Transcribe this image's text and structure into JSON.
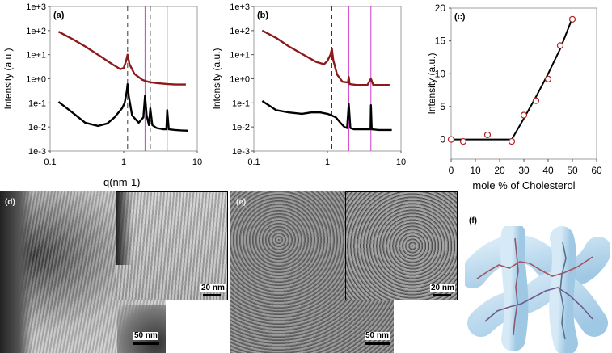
{
  "figure": {
    "panels": {
      "a": {
        "label": "(a)"
      },
      "b": {
        "label": "(b)"
      },
      "c": {
        "label": "(c)"
      },
      "d": {
        "label": "(d)",
        "scale_main": "50 nm",
        "scale_inset": "20 nm"
      },
      "e": {
        "label": "(e)",
        "scale_main": "50 nm",
        "scale_inset": "20 nm"
      },
      "f": {
        "label": "(f)"
      }
    },
    "shared": {
      "saxs_ylabel": "Intensity (a.u.)",
      "saxs_xlabel": "q(nm-1)",
      "saxs_yticks": [
        "1e+3",
        "1e+2",
        "1e+1",
        "1e+0",
        "1e-1",
        "1e-2",
        "1e-3"
      ],
      "saxs_xticks": [
        "0.1",
        "1",
        "10"
      ]
    }
  },
  "chart_data": [
    {
      "panel": "a",
      "type": "line",
      "xscale": "log",
      "yscale": "log",
      "xlim": [
        0.1,
        10
      ],
      "ylim": [
        0.001,
        1000
      ],
      "xlabel": "q(nm-1)",
      "ylabel": "Intensity (a.u.)",
      "series": [
        {
          "color": "#8b1a1a",
          "x": [
            0.13,
            0.2,
            0.3,
            0.5,
            0.7,
            0.9,
            1.0,
            1.08,
            1.13,
            1.2,
            1.4,
            1.8,
            2.0,
            2.3,
            3,
            4,
            5,
            7
          ],
          "y": [
            90,
            45,
            22,
            8,
            4,
            2.5,
            2.8,
            5.5,
            10,
            4,
            1.6,
            0.9,
            0.8,
            0.72,
            0.65,
            0.6,
            0.58,
            0.58
          ]
        },
        {
          "color": "#000000",
          "x": [
            0.13,
            0.2,
            0.3,
            0.45,
            0.6,
            0.75,
            0.85,
            0.95,
            1.03,
            1.1,
            1.13,
            1.17,
            1.3,
            1.6,
            1.85,
            1.95,
            2.05,
            2.2,
            2.3,
            2.45,
            2.8,
            3.5,
            3.8,
            3.9,
            4.1,
            5,
            6,
            7.5
          ],
          "y": [
            0.11,
            0.04,
            0.015,
            0.011,
            0.014,
            0.025,
            0.04,
            0.06,
            0.1,
            0.3,
            0.6,
            0.2,
            0.03,
            0.015,
            0.025,
            0.2,
            0.03,
            0.012,
            0.06,
            0.012,
            0.009,
            0.008,
            0.008,
            0.05,
            0.008,
            0.0075,
            0.0072,
            0.007
          ]
        }
      ],
      "reference_lines_dashed": [
        1.13,
        2.0,
        2.3
      ],
      "reference_lines_magenta": [
        1.95,
        3.9
      ]
    },
    {
      "panel": "b",
      "type": "line",
      "xscale": "log",
      "yscale": "log",
      "xlim": [
        0.1,
        10
      ],
      "ylim": [
        0.001,
        1000
      ],
      "xlabel": "q(nm-1)",
      "ylabel": "Intensity (a.u.)",
      "series": [
        {
          "color": "#8b1a1a",
          "x": [
            0.13,
            0.2,
            0.3,
            0.5,
            0.7,
            0.9,
            1.0,
            1.1,
            1.15,
            1.2,
            1.35,
            1.6,
            1.9,
            1.95,
            2.0,
            2.5,
            3.5,
            3.9,
            4.2,
            5,
            7
          ],
          "y": [
            100,
            50,
            22,
            9,
            5,
            4,
            5.5,
            10,
            18,
            6,
            1.5,
            0.75,
            0.7,
            1.2,
            0.6,
            0.55,
            0.55,
            1.0,
            0.55,
            0.55,
            0.55
          ]
        },
        {
          "color": "#000000",
          "x": [
            0.13,
            0.2,
            0.3,
            0.45,
            0.6,
            0.8,
            1.0,
            1.15,
            1.3,
            1.5,
            1.7,
            1.85,
            1.95,
            2.05,
            2.3,
            3,
            3.5,
            3.85,
            3.9,
            4.0,
            5,
            7.5
          ],
          "y": [
            0.12,
            0.05,
            0.04,
            0.035,
            0.04,
            0.04,
            0.035,
            0.03,
            0.025,
            0.015,
            0.01,
            0.009,
            0.09,
            0.009,
            0.008,
            0.008,
            0.008,
            0.008,
            0.08,
            0.008,
            0.0075,
            0.0075
          ]
        }
      ],
      "reference_lines_dashed": [
        1.15
      ],
      "reference_lines_magenta": [
        1.95,
        3.9
      ]
    },
    {
      "panel": "c",
      "type": "scatter",
      "xlim": [
        0,
        60
      ],
      "ylim": [
        -3,
        20
      ],
      "xlabel": "mole % of Cholesterol",
      "ylabel": "Intensity (a.u.)",
      "xticks": [
        "0",
        "10",
        "20",
        "30",
        "40",
        "50",
        "60"
      ],
      "yticks": [
        "0",
        "5",
        "10",
        "15",
        "20"
      ],
      "points": {
        "x": [
          0,
          5,
          15,
          25,
          30,
          35,
          40,
          45,
          50
        ],
        "y": [
          0,
          -0.3,
          0.7,
          -0.3,
          3.7,
          5.9,
          9.2,
          14.3,
          18.3
        ]
      },
      "fit_line": {
        "x": [
          0,
          25,
          30,
          35,
          40,
          45,
          50
        ],
        "y": [
          0,
          0,
          3.2,
          6.5,
          10,
          13.8,
          18.5
        ]
      }
    }
  ],
  "colors": {
    "red_curve": "#8b1a1a",
    "magenta": "#cc3dcc",
    "marker": "#b22222"
  }
}
